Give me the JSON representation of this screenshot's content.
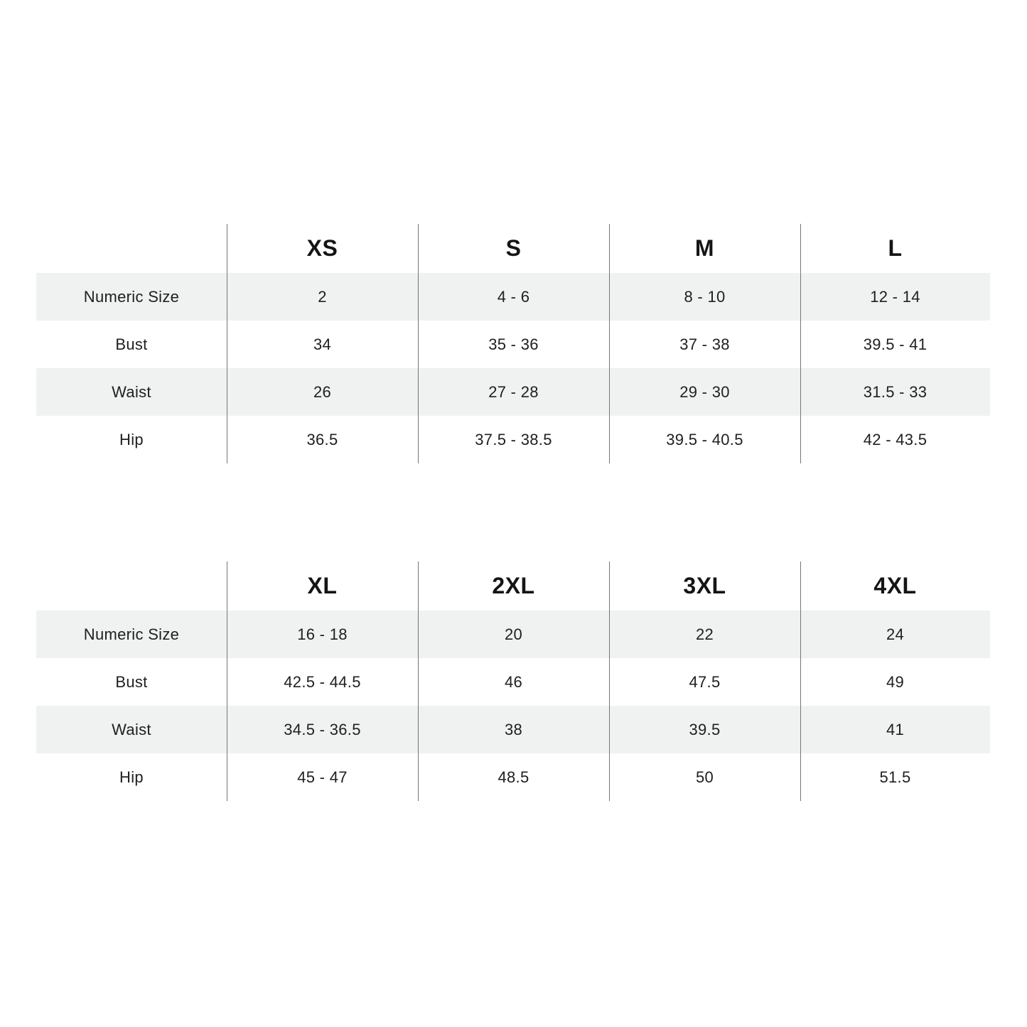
{
  "styles": {
    "background": "#ffffff",
    "stripe_color": "#f0f1f1",
    "divider_color": "#757575",
    "text_color": "#202020",
    "header_text_color": "#151515"
  },
  "chart_data": [
    {
      "type": "table",
      "columns": [
        "",
        "XS",
        "S",
        "M",
        "L"
      ],
      "rows": [
        {
          "label": "Numeric Size",
          "values": [
            "2",
            "4 - 6",
            "8 - 10",
            "12 - 14"
          ]
        },
        {
          "label": "Bust",
          "values": [
            "34",
            "35 - 36",
            "37 - 38",
            "39.5 - 41"
          ]
        },
        {
          "label": "Waist",
          "values": [
            "26",
            "27 - 28",
            "29 - 30",
            "31.5 - 33"
          ]
        },
        {
          "label": "Hip",
          "values": [
            "36.5",
            "37.5 - 38.5",
            "39.5 - 40.5",
            "42 - 43.5"
          ]
        }
      ],
      "layout": {
        "stripe_rows": [
          "Numeric Size",
          "Waist"
        ],
        "grid": "vertical-dividers-only"
      }
    },
    {
      "type": "table",
      "columns": [
        "",
        "XL",
        "2XL",
        "3XL",
        "4XL"
      ],
      "rows": [
        {
          "label": "Numeric Size",
          "values": [
            "16 - 18",
            "20",
            "22",
            "24"
          ]
        },
        {
          "label": "Bust",
          "values": [
            "42.5 - 44.5",
            "46",
            "47.5",
            "49"
          ]
        },
        {
          "label": "Waist",
          "values": [
            "34.5 - 36.5",
            "38",
            "39.5",
            "41"
          ]
        },
        {
          "label": "Hip",
          "values": [
            "45 - 47",
            "48.5",
            "50",
            "51.5"
          ]
        }
      ],
      "layout": {
        "stripe_rows": [
          "Numeric Size",
          "Waist"
        ],
        "grid": "vertical-dividers-only"
      }
    }
  ]
}
